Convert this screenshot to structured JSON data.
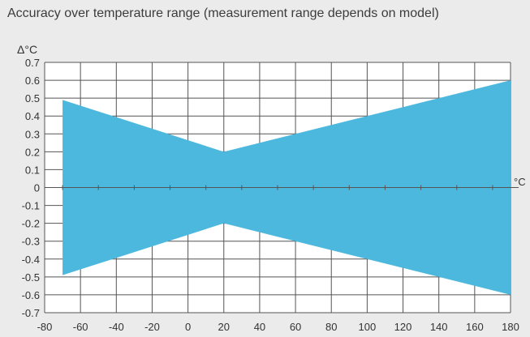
{
  "chart_data": {
    "type": "area",
    "title": "Accuracy over temperature range (measurement range depends on model)",
    "xlabel": "°C",
    "ylabel": "Δ°C",
    "xlim": [
      -80,
      180
    ],
    "ylim": [
      -0.7,
      0.7
    ],
    "x_ticks": [
      -80,
      -60,
      -40,
      -20,
      0,
      20,
      40,
      60,
      80,
      100,
      120,
      140,
      160,
      180
    ],
    "y_ticks": [
      0.7,
      0.6,
      0.5,
      0.4,
      0.3,
      0.2,
      0.1,
      0,
      -0.1,
      -0.2,
      -0.3,
      -0.4,
      -0.5,
      -0.6,
      -0.7
    ],
    "grid": true,
    "x_gridlines": [
      -80,
      -60,
      -40,
      -20,
      0,
      20,
      40,
      60,
      80,
      100,
      120,
      140,
      160,
      180
    ],
    "x_minor_ticks_on_zero_line": [
      -70,
      -50,
      -30,
      -10,
      10,
      30,
      50,
      70,
      90,
      110,
      130,
      150,
      170
    ],
    "series": [
      {
        "x": [
          -70,
          20,
          180
        ],
        "upper": [
          0.49,
          0.2,
          0.6
        ],
        "lower": [
          -0.49,
          -0.2,
          -0.6
        ]
      }
    ],
    "colors": {
      "fill": "#4db8dd",
      "grid": "#555555",
      "background": "#ebebeb",
      "plot_background": "#ffffff"
    }
  }
}
